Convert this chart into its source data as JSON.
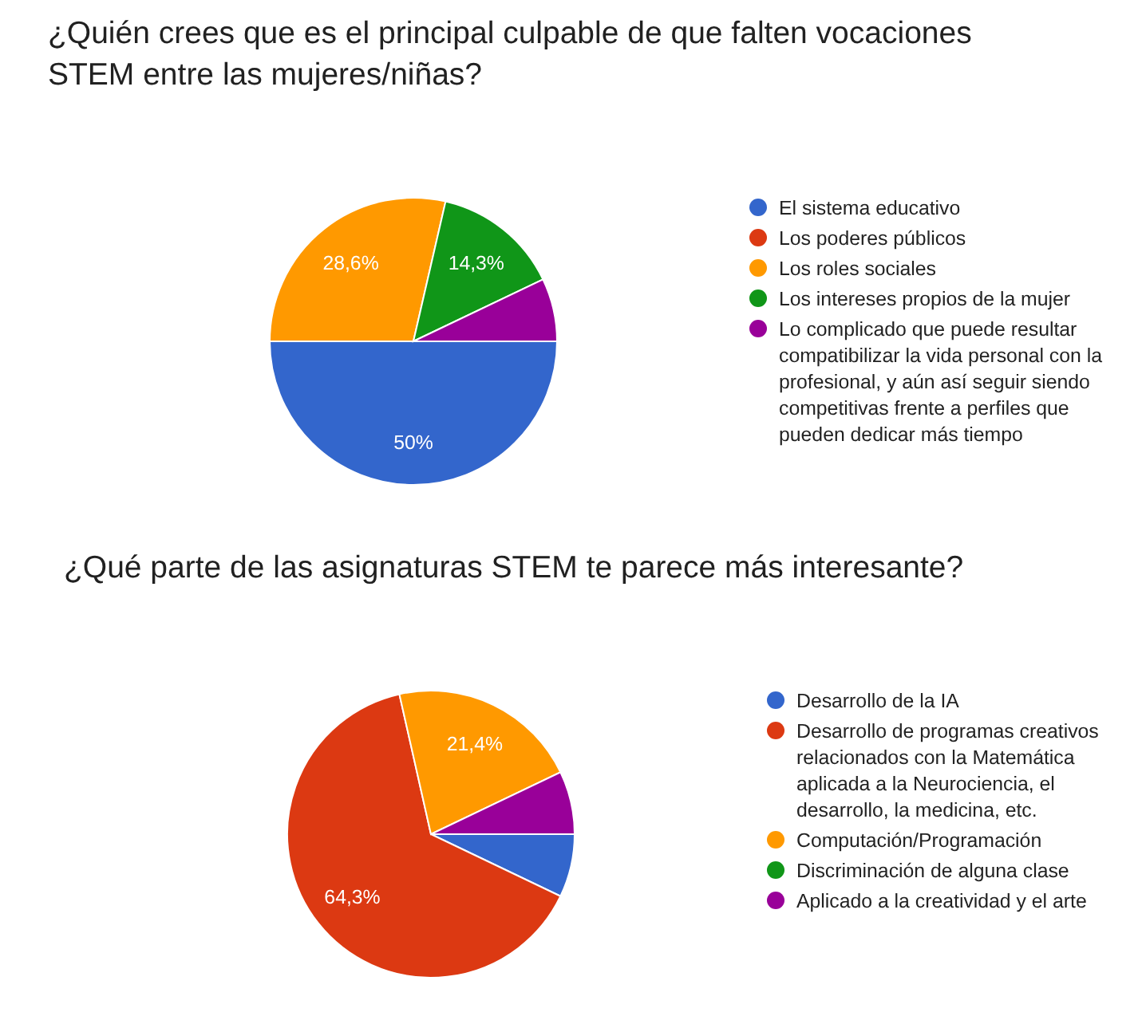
{
  "chart_data": [
    {
      "type": "pie",
      "title": "¿Quién crees que es el principal culpable de que falten vocaciones STEM entre las mujeres/niñas?",
      "categories": [
        "El sistema educativo",
        "Los poderes públicos",
        "Los roles sociales",
        "Los intereses propios de la mujer",
        "Lo complicado que puede resultar compatibilizar la vida personal con la profesional, y aún así seguir siendo competitivas frente a perfiles que pueden dedicar más tiempo"
      ],
      "values": [
        50,
        0,
        28.6,
        14.3,
        7.1
      ],
      "colors": [
        "#3366cc",
        "#dc3912",
        "#ff9900",
        "#109618",
        "#990099"
      ],
      "value_labels": [
        "50%",
        null,
        "28,6%",
        "14,3%",
        null
      ],
      "legend": "right"
    },
    {
      "type": "pie",
      "title": "¿Qué parte de las asignaturas STEM te parece más interesante?",
      "categories": [
        "Desarrollo de la IA",
        "Desarrollo de programas creativos relacionados con la Matemática aplicada a la Neurociencia, el desarrollo, la medicina, etc.",
        "Computación/Programación",
        "Discriminación de alguna clase",
        "Aplicado a la creatividad y el arte"
      ],
      "values": [
        7.1,
        64.3,
        21.4,
        0,
        7.1
      ],
      "colors": [
        "#3366cc",
        "#dc3912",
        "#ff9900",
        "#109618",
        "#990099"
      ],
      "value_labels": [
        null,
        "64,3%",
        "21,4%",
        null,
        null
      ],
      "legend": "right"
    }
  ]
}
